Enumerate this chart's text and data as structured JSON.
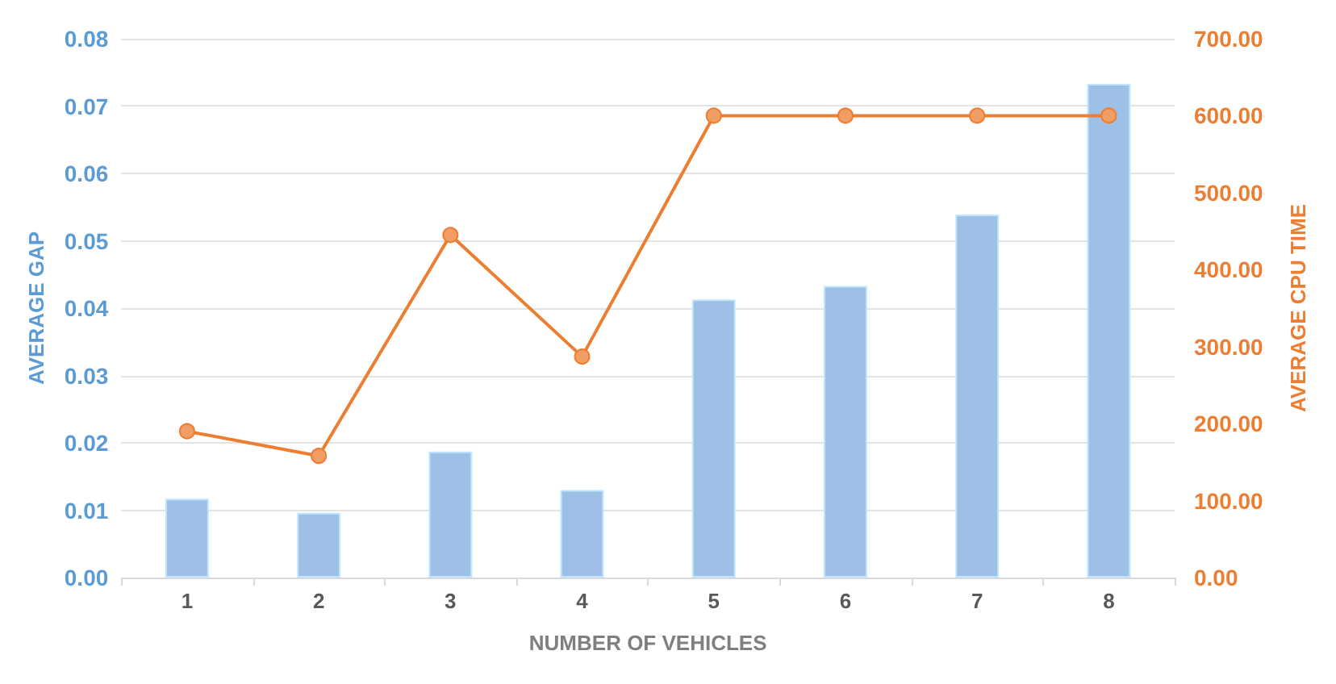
{
  "chart_data": {
    "type": "bar",
    "xlabel": "NUMBER OF VEHICLES",
    "ylabel": "AVERAGE GAP",
    "y2label": "AVERAGE CPU TIME",
    "categories": [
      "1",
      "2",
      "3",
      "4",
      "5",
      "6",
      "7",
      "8"
    ],
    "series": [
      {
        "color": "#9fc0e6",
        "values": [
          0.0117,
          0.0096,
          0.0187,
          0.013,
          0.0413,
          0.0433,
          0.0539,
          0.0733
        ]
      },
      {
        "type": "line",
        "axis": "y2",
        "color": "#ed7d31",
        "values": [
          190,
          158,
          445,
          287,
          600,
          600,
          600,
          600
        ]
      }
    ],
    "ylim": [
      0,
      0.08
    ],
    "yticks": [
      {
        "value": 0,
        "label": "0.00"
      },
      {
        "value": 0.01,
        "label": "0.01"
      },
      {
        "value": 0.02,
        "label": "0.02"
      },
      {
        "value": 0.03,
        "label": "0.03"
      },
      {
        "value": 0.04,
        "label": "0.04"
      },
      {
        "value": 0.05,
        "label": "0.05"
      },
      {
        "value": 0.06,
        "label": "0.06"
      },
      {
        "value": 0.07,
        "label": "0.07"
      },
      {
        "value": 0.08,
        "label": "0.08"
      }
    ],
    "y2lim": [
      0,
      700
    ],
    "y2ticks": [
      {
        "value": 0,
        "label": "0.00"
      },
      {
        "value": 100,
        "label": "100.00"
      },
      {
        "value": 200,
        "label": "200.00"
      },
      {
        "value": 300,
        "label": "300.00"
      },
      {
        "value": 400,
        "label": "400.00"
      },
      {
        "value": 500,
        "label": "500.00"
      },
      {
        "value": 600,
        "label": "600.00"
      },
      {
        "value": 700,
        "label": "700.00"
      }
    ],
    "grid": "y",
    "marker": "circle"
  }
}
